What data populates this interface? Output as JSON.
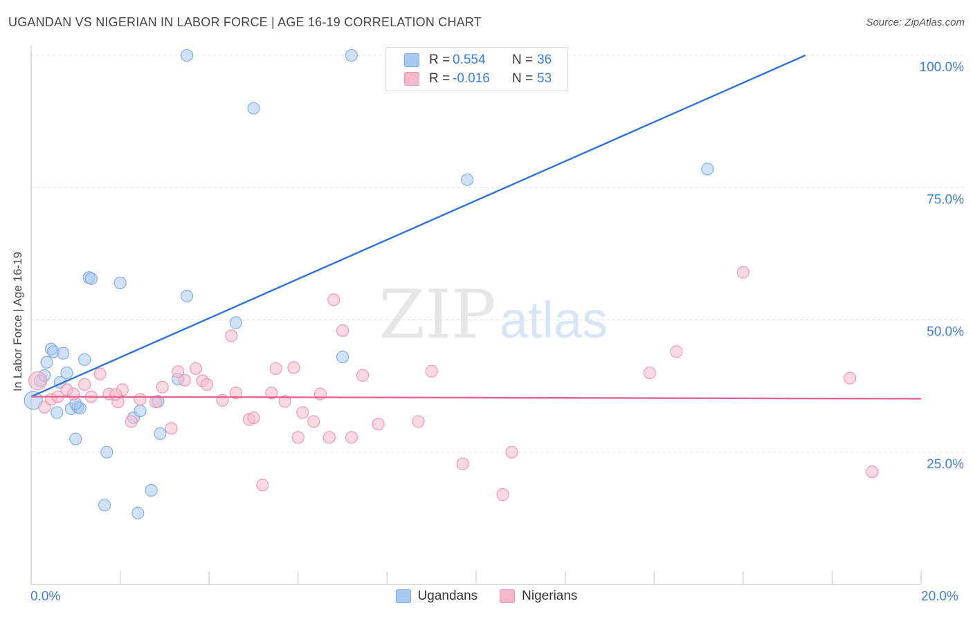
{
  "title": "UGANDAN VS NIGERIAN IN LABOR FORCE | AGE 16-19 CORRELATION CHART",
  "source": "Source: ZipAtlas.com",
  "watermark": {
    "zip": "ZIP",
    "atlas": "atlas"
  },
  "legend": {
    "rows": [
      {
        "r_label": "R =",
        "r_value": "0.554",
        "n_label": "N =",
        "n_value": "36",
        "color": "#a9c9f2"
      },
      {
        "r_label": "R =",
        "r_value": "-0.016",
        "n_label": "N =",
        "n_value": "53",
        "color": "#f7b9cc"
      }
    ]
  },
  "bottom_legend": [
    {
      "label": "Ugandans",
      "color": "#a9c9f2"
    },
    {
      "label": "Nigerians",
      "color": "#f7b9cc"
    }
  ],
  "chart_data": {
    "type": "scatter",
    "title": "UGANDAN VS NIGERIAN IN LABOR FORCE | AGE 16-19 CORRELATION CHART",
    "xlabel": "",
    "ylabel": "In Labor Force | Age 16-19",
    "xlim": [
      0,
      20
    ],
    "ylim": [
      0,
      100
    ],
    "x_ticks": [
      "0.0%",
      "20.0%"
    ],
    "y_ticks": [
      {
        "value": 25,
        "label": "25.0%"
      },
      {
        "value": 50,
        "label": "50.0%"
      },
      {
        "value": 75,
        "label": "75.0%"
      },
      {
        "value": 100,
        "label": "100.0%"
      }
    ],
    "grid": true,
    "legend_position": "top-center",
    "series": [
      {
        "name": "Ugandans",
        "color": "#a9c9f2",
        "stroke": "#7aa8e3",
        "trend_color": "#2f72d4",
        "trend": {
          "x0": 0,
          "y0": 35.5,
          "x1": 17.4,
          "y1": 100
        },
        "points": [
          [
            0.05,
            34.8
          ],
          [
            0.2,
            38.5
          ],
          [
            0.3,
            39.5
          ],
          [
            0.35,
            42.0
          ],
          [
            0.45,
            44.5
          ],
          [
            0.5,
            44.0
          ],
          [
            0.58,
            32.5
          ],
          [
            0.65,
            38.2
          ],
          [
            0.72,
            43.7
          ],
          [
            0.8,
            40.0
          ],
          [
            0.9,
            33.2
          ],
          [
            1.0,
            27.5
          ],
          [
            1.05,
            33.5
          ],
          [
            1.1,
            33.3
          ],
          [
            1.2,
            42.5
          ],
          [
            1.3,
            58.0
          ],
          [
            1.35,
            57.8
          ],
          [
            1.7,
            25.0
          ],
          [
            1.65,
            15.0
          ],
          [
            2.0,
            57.0
          ],
          [
            2.3,
            31.5
          ],
          [
            2.4,
            13.5
          ],
          [
            2.45,
            32.8
          ],
          [
            2.7,
            17.8
          ],
          [
            2.9,
            28.5
          ],
          [
            2.85,
            34.6
          ],
          [
            3.3,
            38.8
          ],
          [
            3.5,
            54.5
          ],
          [
            3.5,
            100
          ],
          [
            4.6,
            49.5
          ],
          [
            5.0,
            90.0
          ],
          [
            7.2,
            100
          ],
          [
            7.0,
            43.0
          ],
          [
            9.8,
            76.5
          ],
          [
            15.2,
            78.5
          ],
          [
            1.0,
            34.2
          ]
        ]
      },
      {
        "name": "Nigerians",
        "color": "#f7b9cc",
        "stroke": "#eb92ae",
        "trend_color": "#e4648e",
        "trend": {
          "x0": 0,
          "y0": 35.5,
          "x1": 20,
          "y1": 35.1
        },
        "points": [
          [
            0.15,
            38.5
          ],
          [
            0.3,
            33.5
          ],
          [
            0.45,
            35.0
          ],
          [
            0.6,
            35.5
          ],
          [
            0.8,
            36.8
          ],
          [
            0.95,
            36.0
          ],
          [
            1.2,
            37.8
          ],
          [
            1.35,
            35.5
          ],
          [
            1.55,
            39.8
          ],
          [
            1.75,
            36.0
          ],
          [
            1.95,
            34.5
          ],
          [
            2.05,
            36.8
          ],
          [
            2.25,
            30.8
          ],
          [
            2.45,
            35.0
          ],
          [
            2.8,
            34.5
          ],
          [
            2.95,
            37.3
          ],
          [
            3.15,
            29.5
          ],
          [
            3.3,
            40.2
          ],
          [
            3.45,
            38.6
          ],
          [
            3.7,
            40.8
          ],
          [
            3.85,
            38.5
          ],
          [
            3.95,
            37.8
          ],
          [
            4.3,
            34.8
          ],
          [
            4.5,
            47.0
          ],
          [
            4.6,
            36.2
          ],
          [
            4.9,
            31.2
          ],
          [
            5.0,
            31.5
          ],
          [
            5.2,
            18.8
          ],
          [
            5.4,
            36.2
          ],
          [
            5.5,
            40.8
          ],
          [
            5.7,
            34.6
          ],
          [
            5.9,
            41.0
          ],
          [
            6.0,
            27.8
          ],
          [
            6.1,
            32.5
          ],
          [
            6.35,
            30.8
          ],
          [
            6.5,
            36.0
          ],
          [
            6.7,
            27.8
          ],
          [
            6.8,
            53.8
          ],
          [
            7.0,
            48.0
          ],
          [
            7.2,
            27.8
          ],
          [
            7.45,
            39.5
          ],
          [
            7.8,
            30.3
          ],
          [
            8.7,
            30.8
          ],
          [
            9.0,
            40.3
          ],
          [
            9.7,
            22.8
          ],
          [
            10.6,
            17.0
          ],
          [
            10.8,
            25.0
          ],
          [
            13.9,
            40.0
          ],
          [
            14.5,
            44.0
          ],
          [
            16.0,
            59.0
          ],
          [
            18.4,
            39.0
          ],
          [
            18.9,
            21.3
          ],
          [
            1.9,
            35.9
          ]
        ]
      }
    ]
  }
}
